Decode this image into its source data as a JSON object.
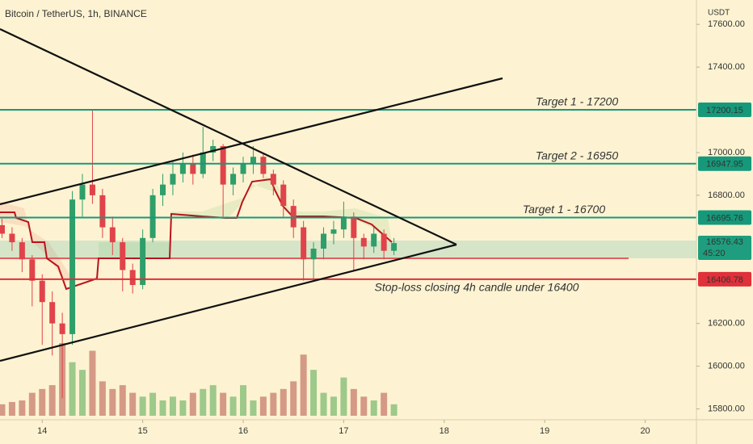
{
  "chart_data": {
    "type": "candlestick",
    "title": "Bitcoin / TetherUS, 1h, BINANCE",
    "axis_label": "USDT",
    "x": [
      13.6,
      13.7,
      13.8,
      13.9,
      14.0,
      14.1,
      14.2,
      14.3,
      14.4,
      14.5,
      14.6,
      14.7,
      14.8,
      14.9,
      15.0,
      15.1,
      15.2,
      15.3,
      15.4,
      15.5,
      15.6,
      15.7,
      15.8,
      15.9,
      16.0,
      16.1,
      16.2,
      16.3,
      16.4,
      16.5,
      16.6,
      16.7,
      16.8,
      16.9,
      17.0,
      17.1,
      17.2,
      17.3,
      17.4,
      17.5
    ],
    "open": [
      16660,
      16620,
      16580,
      16500,
      16400,
      16300,
      16200,
      16150,
      16780,
      16850,
      16800,
      16650,
      16580,
      16450,
      16380,
      16600,
      16800,
      16850,
      16900,
      16950,
      16900,
      17000,
      17030,
      16850,
      16900,
      16950,
      16980,
      16900,
      16850,
      16750,
      16650,
      16500,
      16550,
      16620,
      16640,
      16700,
      16600,
      16560,
      16620,
      16540
    ],
    "high": [
      16690,
      16650,
      16600,
      16520,
      16430,
      16350,
      16250,
      16820,
      16900,
      17200,
      16830,
      16700,
      16600,
      16480,
      16640,
      16830,
      16900,
      16960,
      17000,
      16990,
      17120,
      17060,
      17040,
      16930,
      16980,
      17030,
      17000,
      16920,
      16870,
      16780,
      16680,
      16580,
      16650,
      16680,
      16770,
      16720,
      16620,
      16650,
      16640,
      16600
    ],
    "low": [
      16600,
      16540,
      16440,
      16280,
      16100,
      16050,
      15850,
      16100,
      16700,
      16760,
      16600,
      16520,
      16350,
      16340,
      16360,
      16580,
      16750,
      16800,
      16860,
      16850,
      16880,
      16960,
      16700,
      16800,
      16860,
      16900,
      16880,
      16800,
      16700,
      16600,
      16400,
      16400,
      16500,
      16570,
      16600,
      16450,
      16500,
      16530,
      16500,
      16520
    ],
    "close": [
      16620,
      16580,
      16500,
      16400,
      16300,
      16200,
      16150,
      16780,
      16850,
      16800,
      16650,
      16580,
      16450,
      16380,
      16600,
      16800,
      16850,
      16900,
      16950,
      16900,
      17000,
      17030,
      16850,
      16900,
      16950,
      16980,
      16900,
      16850,
      16750,
      16650,
      16500,
      16550,
      16620,
      16640,
      16700,
      16600,
      16560,
      16620,
      16540,
      16576
    ],
    "volume": [
      15,
      18,
      20,
      30,
      35,
      40,
      95,
      70,
      60,
      85,
      45,
      35,
      40,
      30,
      25,
      30,
      20,
      25,
      20,
      30,
      35,
      40,
      30,
      25,
      40,
      20,
      25,
      30,
      35,
      45,
      80,
      60,
      30,
      25,
      50,
      35,
      25,
      20,
      30,
      15
    ],
    "up_color": "#2e9e6a",
    "down_color": "#e0434a",
    "up_volume_color": "#9dc98a",
    "down_volume_color": "#d49a86",
    "xlim": [
      13.58,
      20.51
    ],
    "xticks": [
      14,
      15,
      16,
      17,
      18,
      19,
      20
    ],
    "ylim": [
      15749,
      17714
    ],
    "yticks": [
      {
        "value": 17600,
        "label": "17600.00"
      },
      {
        "value": 17400,
        "label": "17400.00"
      },
      {
        "value": 17000,
        "label": "17000.00"
      },
      {
        "value": 16800,
        "label": "16800.00"
      },
      {
        "value": 16200,
        "label": "16200.00"
      },
      {
        "value": 16000,
        "label": "16000.00"
      },
      {
        "value": 15800,
        "label": "15800.00"
      }
    ],
    "levels": [
      {
        "value": 17200.15,
        "label": "17200.15",
        "annotation": "Target 1 - 17200",
        "color": "#16997a"
      },
      {
        "value": 16947.95,
        "label": "16947.95",
        "annotation": "Target 2 - 16950",
        "color": "#16997a"
      },
      {
        "value": 16695.76,
        "label": "16695.76",
        "annotation": "Target 1 - 16700",
        "color": "#16997a"
      },
      {
        "value": 16406.78,
        "label": "16406.78",
        "annotation": "Stop-loss closing 4h candle under 16400",
        "color": "#e0303a"
      }
    ],
    "current": {
      "value": 16576.43,
      "label": "16576.43",
      "countdown": "45:20",
      "color": "#1e9e7e"
    }
  }
}
